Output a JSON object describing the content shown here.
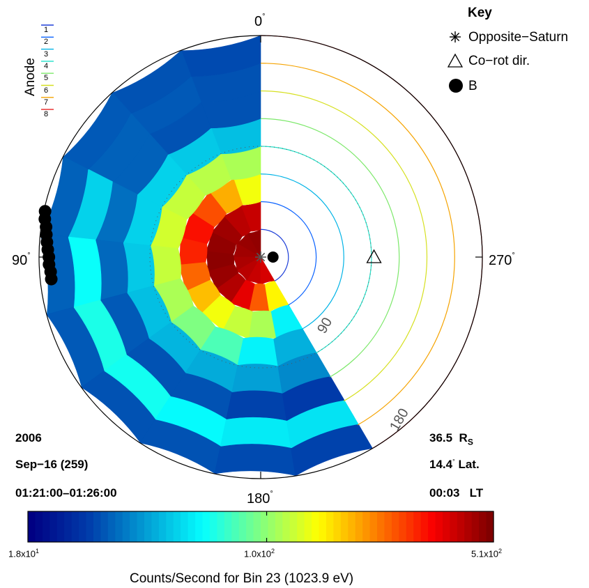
{
  "chart_data": {
    "type": "polar-wedge",
    "legend": {
      "title": "Anode",
      "entries": [
        "1",
        "2",
        "3",
        "4",
        "5",
        "6",
        "7",
        "8"
      ],
      "colors": [
        "#1e3fd8",
        "#0a62ff",
        "#00b3e6",
        "#1de0c8",
        "#7ce86a",
        "#d6e020",
        "#f5a300",
        "#e82020"
      ]
    },
    "key": {
      "title": "Key",
      "items": [
        {
          "symbol": "asterisk",
          "label": "Opposite−Saturn"
        },
        {
          "symbol": "triangle",
          "label": "Co−rot dir."
        },
        {
          "symbol": "filled-circle",
          "label": "B"
        }
      ]
    },
    "angle_labels": {
      "top": "0",
      "left": "90",
      "right": "270",
      "bottom": "180"
    },
    "ring_labels": {
      "r90": "90",
      "r180": "180"
    },
    "info_left": {
      "year": "2006",
      "date": "Sep−16 (259)",
      "time": "01:21:00–01:26:00"
    },
    "info_right": {
      "distance": "36.5",
      "distance_unit": "R",
      "distance_sub": "S",
      "lat_value": "14.4",
      "lat_label": "Lat.",
      "lt_value": "00:03",
      "lt_label": "LT"
    },
    "colorbar": {
      "label": "Counts/Second for Bin 23 (1023.9 eV)",
      "min": 18,
      "max": 510,
      "ticks": [
        {
          "mantissa": "1.8",
          "exp": "1"
        },
        {
          "mantissa": "1.0",
          "exp": "2"
        },
        {
          "mantissa": "5.1",
          "exp": "2"
        }
      ]
    },
    "wedge": {
      "angle_start_deg": 0,
      "angle_end_deg": 210,
      "max_radius_deg": 180,
      "anodes": [
        {
          "anode": "1",
          "r_inner": 0,
          "r_outer": 22.5,
          "values": [
            480,
            470,
            455,
            440,
            420,
            400,
            380
          ]
        },
        {
          "anode": "2",
          "r_inner": 22.5,
          "r_outer": 45,
          "values": [
            400,
            420,
            460,
            480,
            490,
            470,
            430,
            360,
            250,
            150
          ]
        },
        {
          "anode": "3",
          "r_inner": 45,
          "r_outer": 67.5,
          "values": [
            140,
            190,
            260,
            320,
            300,
            240,
            180,
            140,
            120,
            110,
            60
          ]
        },
        {
          "anode": "4",
          "r_inner": 67.5,
          "r_outer": 90,
          "values": [
            110,
            115,
            120,
            125,
            120,
            110,
            95,
            80,
            60,
            45
          ]
        },
        {
          "anode": "5",
          "r_inner": 90,
          "r_outer": 112.5,
          "values": [
            48,
            50,
            52,
            52,
            50,
            48,
            46,
            44,
            42,
            38
          ]
        },
        {
          "anode": "6",
          "r_inner": 112.5,
          "r_outer": 135,
          "values": [
            30,
            30,
            32,
            34,
            33,
            31,
            30,
            30,
            28,
            27
          ]
        },
        {
          "anode": "7",
          "r_inner": 135,
          "r_outer": 157.5,
          "values": [
            30,
            31,
            32,
            52,
            64,
            68,
            66,
            62,
            58,
            56
          ]
        },
        {
          "anode": "8",
          "r_inner": 157.5,
          "r_outer": 180,
          "values": [
            29,
            30,
            31,
            32,
            32,
            31,
            30,
            30,
            29,
            28
          ]
        }
      ]
    },
    "markers": {
      "opposite_saturn": {
        "angle_deg": 0,
        "r_deg": 0
      },
      "corot_dir": {
        "angle_deg": 270,
        "r_deg": 92
      },
      "b_field": {
        "angle_deg": 270,
        "r_deg": 10
      }
    },
    "trace_label": "B",
    "trace_points": [
      {
        "angle_deg": 78,
        "r_deg": 179
      },
      {
        "angle_deg": 80,
        "r_deg": 178
      },
      {
        "angle_deg": 82,
        "r_deg": 176
      },
      {
        "angle_deg": 84,
        "r_deg": 175
      },
      {
        "angle_deg": 86,
        "r_deg": 174
      },
      {
        "angle_deg": 88,
        "r_deg": 173
      },
      {
        "angle_deg": 90,
        "r_deg": 172
      },
      {
        "angle_deg": 92,
        "r_deg": 172
      },
      {
        "angle_deg": 94,
        "r_deg": 171
      },
      {
        "angle_deg": 96,
        "r_deg": 171
      }
    ]
  }
}
